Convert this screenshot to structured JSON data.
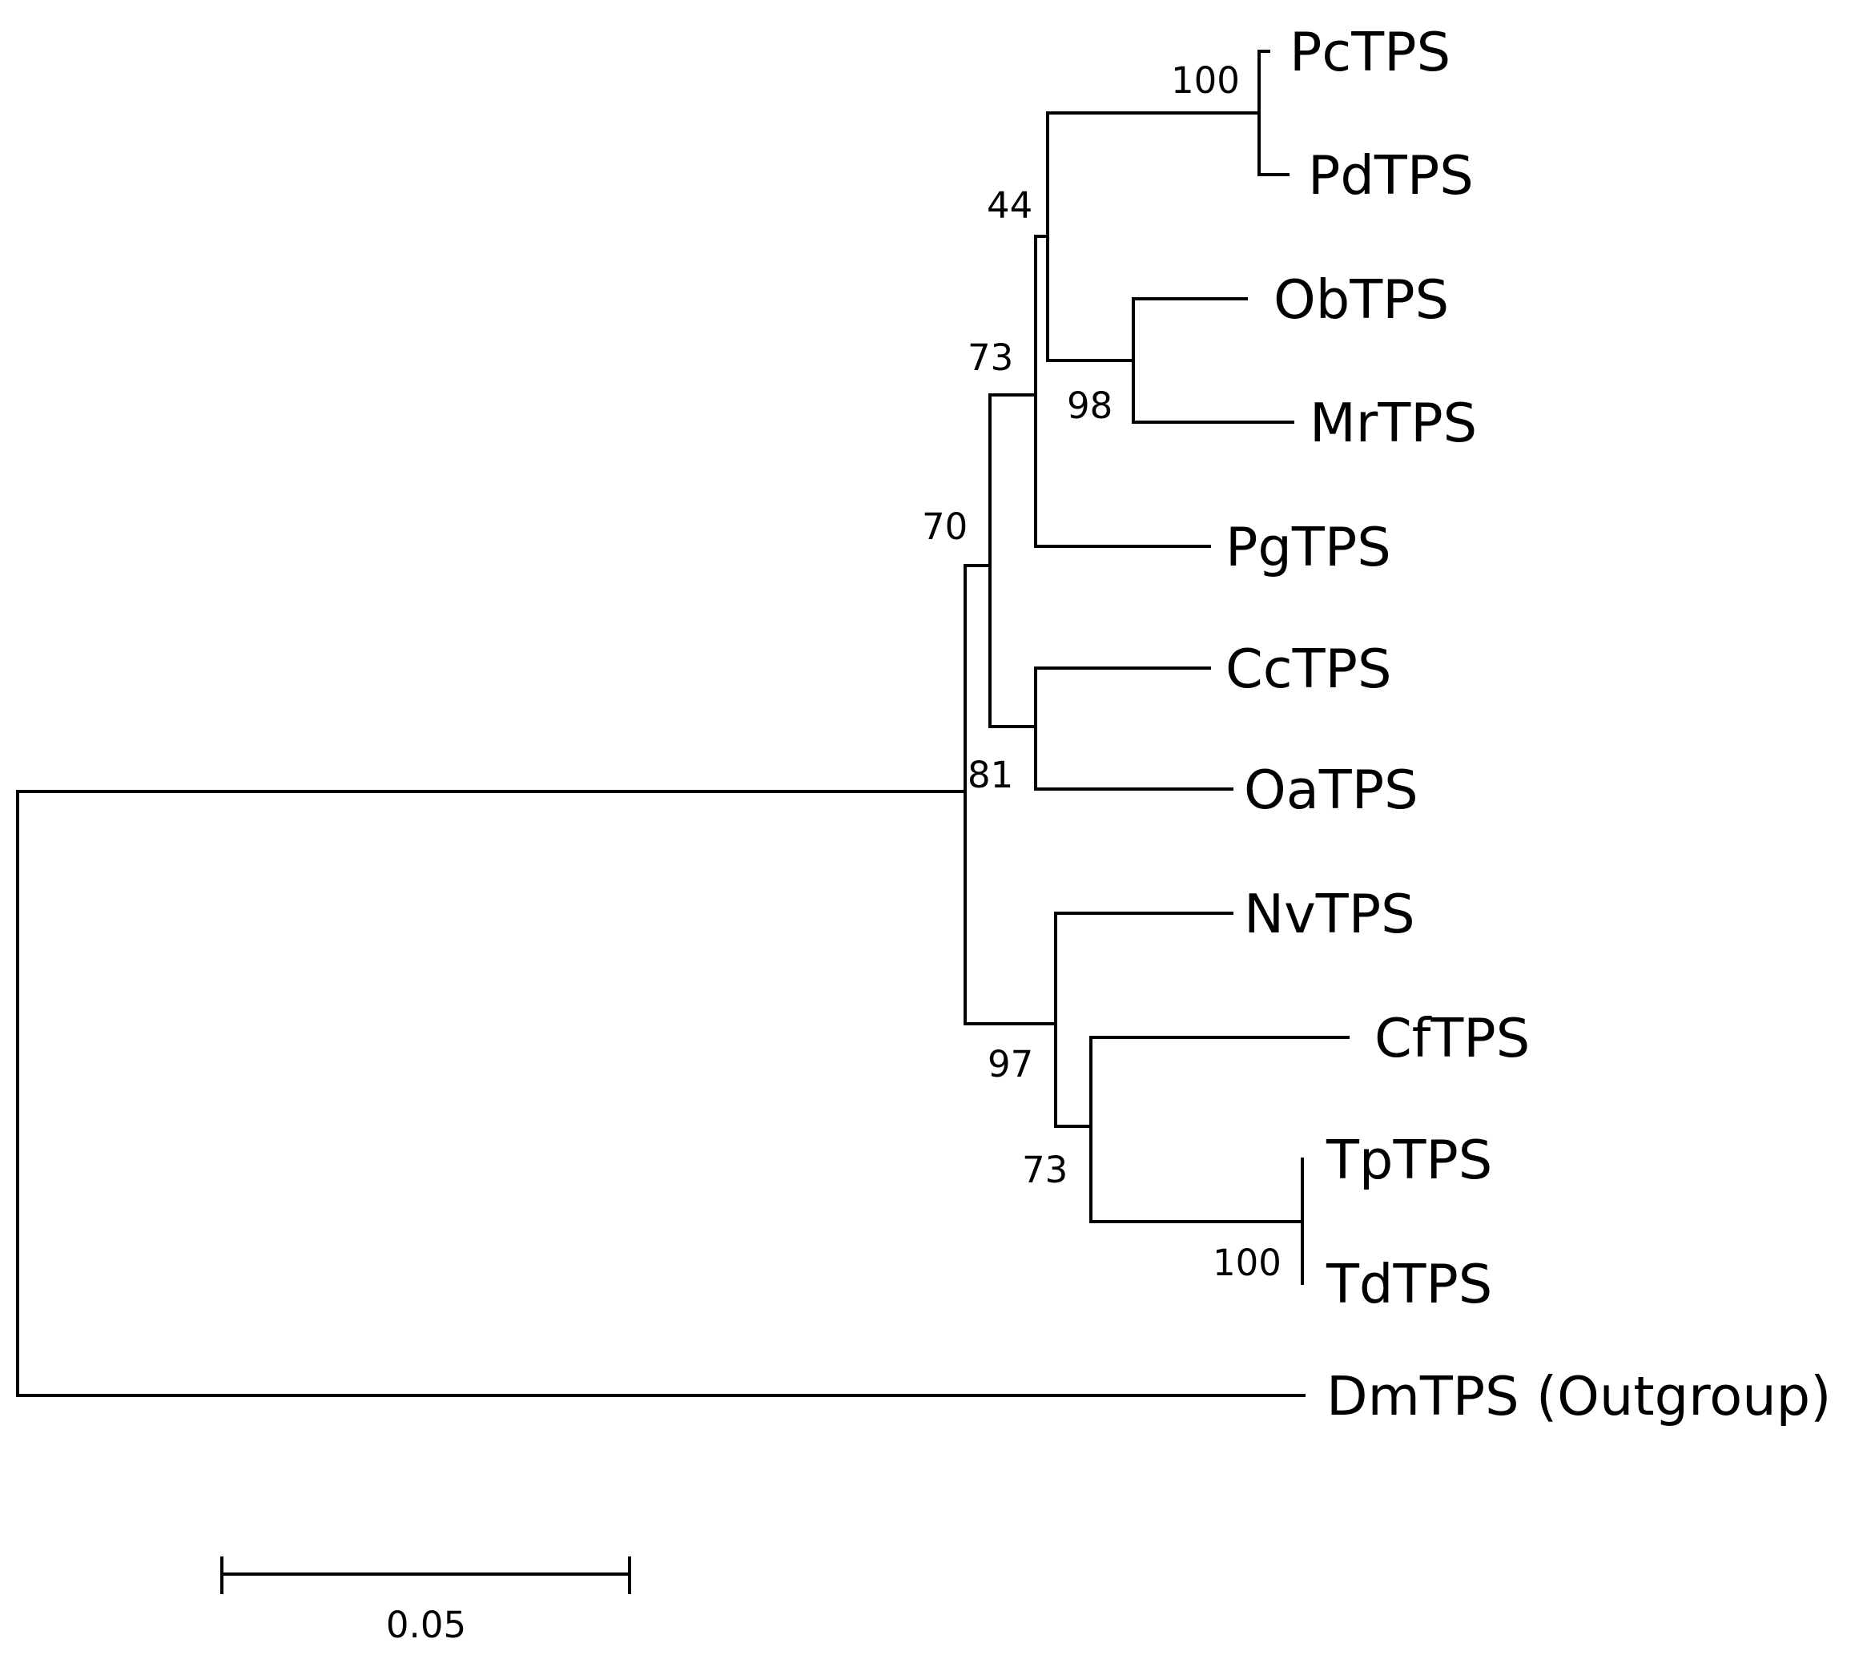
{
  "figure": {
    "type": "phylogenetic-tree"
  },
  "taxa": [
    {
      "id": "pc",
      "label": "PcTPS"
    },
    {
      "id": "pd",
      "label": "PdTPS"
    },
    {
      "id": "ob",
      "label": "ObTPS"
    },
    {
      "id": "mr",
      "label": "MrTPS"
    },
    {
      "id": "pg",
      "label": "PgTPS"
    },
    {
      "id": "cc",
      "label": "CcTPS"
    },
    {
      "id": "oa",
      "label": "OaTPS"
    },
    {
      "id": "nv",
      "label": "NvTPS"
    },
    {
      "id": "cf",
      "label": "CfTPS"
    },
    {
      "id": "tp",
      "label": "TpTPS"
    },
    {
      "id": "td",
      "label": "TdTPS"
    },
    {
      "id": "dm",
      "label": "DmTPS (Outgroup)"
    }
  ],
  "bootstrap": {
    "pc_pd": "100",
    "pcpd_obmr": "44",
    "ob_mr": "98",
    "inner_pg": "73",
    "cc_oa": "81",
    "ingroup_a": "70",
    "nv_clade": "97",
    "cf_tptd": "73",
    "tp_td": "100"
  },
  "scale_bar": {
    "label": "0.05",
    "value": 0.05
  }
}
